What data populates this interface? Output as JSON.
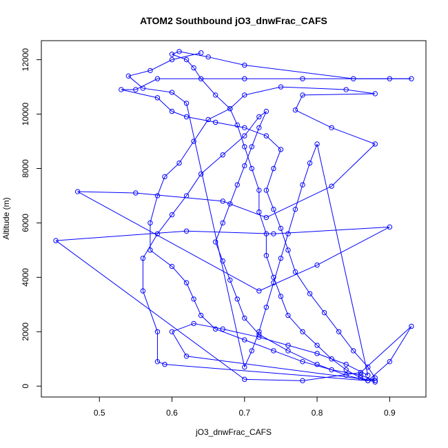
{
  "chart_data": {
    "type": "scatter",
    "title": "ATOM2 Southbound jO3_dnwFrac_CAFS",
    "xlabel": "jO3_dnwFrac_CAFS",
    "ylabel": "Altitude (m)",
    "xlim": [
      0.42,
      0.95
    ],
    "ylim": [
      -400,
      12700
    ],
    "xticks": [
      "0.5",
      "0.6",
      "0.7",
      "0.8",
      "0.9"
    ],
    "yticks": [
      "0",
      "2000",
      "4000",
      "6000",
      "8000",
      "10000",
      "12000"
    ],
    "grid": false,
    "legend": "none",
    "series": [
      {
        "color": "#0000ff",
        "marker": "open-circle",
        "connected": true,
        "points": [
          [
            0.88,
            150
          ],
          [
            0.86,
            300
          ],
          [
            0.84,
            600
          ],
          [
            0.82,
            1000
          ],
          [
            0.8,
            1500
          ],
          [
            0.78,
            2000
          ],
          [
            0.76,
            2600
          ],
          [
            0.75,
            3300
          ],
          [
            0.74,
            4000
          ],
          [
            0.73,
            4800
          ],
          [
            0.73,
            5600
          ],
          [
            0.72,
            6400
          ],
          [
            0.72,
            7200
          ],
          [
            0.71,
            8000
          ],
          [
            0.7,
            8800
          ],
          [
            0.69,
            9600
          ],
          [
            0.68,
            10200
          ],
          [
            0.66,
            10700
          ],
          [
            0.64,
            11300
          ],
          [
            0.63,
            11700
          ],
          [
            0.62,
            12000
          ],
          [
            0.6,
            12200
          ],
          [
            0.61,
            12300
          ],
          [
            0.65,
            12100
          ],
          [
            0.7,
            11800
          ],
          [
            0.85,
            11300
          ],
          [
            0.93,
            11300
          ],
          [
            0.9,
            11300
          ],
          [
            0.78,
            11300
          ],
          [
            0.7,
            11300
          ],
          [
            0.58,
            11300
          ],
          [
            0.55,
            10900
          ],
          [
            0.53,
            10900
          ],
          [
            0.58,
            10600
          ],
          [
            0.6,
            10100
          ],
          [
            0.62,
            9900
          ],
          [
            0.66,
            9700
          ],
          [
            0.7,
            9500
          ],
          [
            0.73,
            9200
          ],
          [
            0.75,
            8700
          ],
          [
            0.74,
            8000
          ],
          [
            0.73,
            7200
          ],
          [
            0.74,
            6500
          ],
          [
            0.75,
            5800
          ],
          [
            0.76,
            5000
          ],
          [
            0.77,
            4200
          ],
          [
            0.79,
            3400
          ],
          [
            0.81,
            2700
          ],
          [
            0.83,
            2000
          ],
          [
            0.85,
            1300
          ],
          [
            0.87,
            700
          ],
          [
            0.88,
            300
          ],
          [
            0.87,
            200
          ],
          [
            0.84,
            400
          ],
          [
            0.8,
            800
          ],
          [
            0.76,
            1300
          ],
          [
            0.72,
            1900
          ],
          [
            0.7,
            2500
          ],
          [
            0.69,
            3200
          ],
          [
            0.68,
            3900
          ],
          [
            0.67,
            4600
          ],
          [
            0.66,
            5300
          ],
          [
            0.67,
            6000
          ],
          [
            0.68,
            6700
          ],
          [
            0.69,
            7400
          ],
          [
            0.7,
            8100
          ],
          [
            0.71,
            8800
          ],
          [
            0.72,
            9500
          ],
          [
            0.73,
            10100
          ],
          [
            0.72,
            9900
          ],
          [
            0.7,
            9200
          ],
          [
            0.67,
            8500
          ],
          [
            0.64,
            7800
          ],
          [
            0.62,
            7000
          ],
          [
            0.6,
            6300
          ],
          [
            0.58,
            5600
          ],
          [
            0.56,
            4700
          ],
          [
            0.56,
            3500
          ],
          [
            0.58,
            2000
          ],
          [
            0.58,
            900
          ],
          [
            0.59,
            800
          ],
          [
            0.87,
            200
          ],
          [
            0.9,
            900
          ],
          [
            0.93,
            2200
          ],
          [
            0.86,
            500
          ],
          [
            0.78,
            200
          ],
          [
            0.7,
            250
          ],
          [
            0.44,
            5350
          ],
          [
            0.62,
            5700
          ],
          [
            0.74,
            5600
          ],
          [
            0.9,
            5850
          ],
          [
            0.8,
            4450
          ],
          [
            0.72,
            3500
          ],
          [
            0.47,
            7150
          ],
          [
            0.55,
            7100
          ],
          [
            0.67,
            6800
          ],
          [
            0.73,
            6200
          ],
          [
            0.82,
            7350
          ],
          [
            0.88,
            8900
          ],
          [
            0.82,
            9500
          ],
          [
            0.77,
            10150
          ],
          [
            0.78,
            10700
          ],
          [
            0.88,
            10750
          ],
          [
            0.84,
            10900
          ],
          [
            0.75,
            11000
          ],
          [
            0.7,
            10700
          ],
          [
            0.68,
            10200
          ],
          [
            0.65,
            9800
          ],
          [
            0.63,
            9000
          ],
          [
            0.61,
            8200
          ],
          [
            0.59,
            7700
          ],
          [
            0.58,
            7000
          ],
          [
            0.57,
            6000
          ],
          [
            0.57,
            5000
          ],
          [
            0.6,
            4400
          ],
          [
            0.62,
            3800
          ],
          [
            0.63,
            3200
          ],
          [
            0.64,
            2600
          ],
          [
            0.66,
            2100
          ],
          [
            0.7,
            1700
          ],
          [
            0.74,
            1300
          ],
          [
            0.78,
            900
          ],
          [
            0.82,
            600
          ],
          [
            0.86,
            400
          ],
          [
            0.88,
            200
          ],
          [
            0.62,
            1100
          ],
          [
            0.6,
            2000
          ],
          [
            0.63,
            2300
          ],
          [
            0.67,
            2100
          ],
          [
            0.72,
            1800
          ],
          [
            0.76,
            1500
          ],
          [
            0.8,
            1200
          ],
          [
            0.84,
            800
          ],
          [
            0.87,
            400
          ],
          [
            0.8,
            8900
          ],
          [
            0.79,
            8200
          ],
          [
            0.78,
            7400
          ],
          [
            0.77,
            6500
          ],
          [
            0.76,
            5600
          ],
          [
            0.75,
            4700
          ],
          [
            0.74,
            3800
          ],
          [
            0.73,
            2900
          ],
          [
            0.72,
            2000
          ],
          [
            0.71,
            1300
          ],
          [
            0.7,
            700
          ],
          [
            0.62,
            10400
          ],
          [
            0.6,
            10800
          ],
          [
            0.56,
            10950
          ],
          [
            0.54,
            11400
          ],
          [
            0.57,
            11600
          ],
          [
            0.6,
            12000
          ],
          [
            0.64,
            12250
          ]
        ]
      }
    ]
  }
}
